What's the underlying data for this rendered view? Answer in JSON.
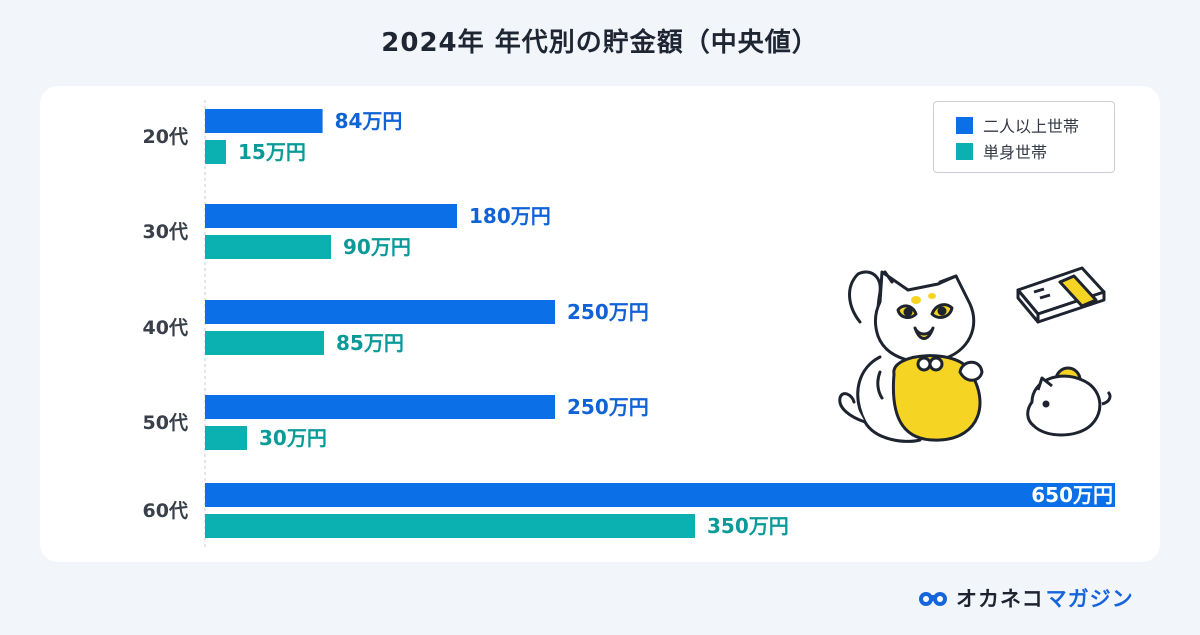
{
  "title": "2024年 年代別の貯金額（中央値）",
  "legend": [
    {
      "label": "二人以上世帯",
      "color": "#0b6fe8"
    },
    {
      "label": "単身世帯",
      "color": "#0bb0b0"
    }
  ],
  "chart_data": {
    "type": "bar",
    "orientation": "horizontal",
    "categories": [
      "20代",
      "30代",
      "40代",
      "50代",
      "60代"
    ],
    "unit": "万円",
    "series": [
      {
        "name": "二人以上世帯",
        "values": [
          84,
          180,
          250,
          250,
          650
        ],
        "labels": [
          "84万円",
          "180万円",
          "250万円",
          "250万円",
          "650万円"
        ],
        "color": "#0b6fe8",
        "label_color": "#1063d6"
      },
      {
        "name": "単身世帯",
        "values": [
          15,
          90,
          85,
          30,
          350
        ],
        "labels": [
          "15万円",
          "90万円",
          "85万円",
          "30万円",
          "350万円"
        ],
        "color": "#0bb0b0",
        "label_color": "#0a9a98"
      }
    ],
    "xlim": [
      0,
      650
    ],
    "grid": false,
    "legend_position": "top-right"
  },
  "brand": {
    "main": "オカネコ",
    "sub": "マガジン",
    "color": "#1665dd"
  }
}
